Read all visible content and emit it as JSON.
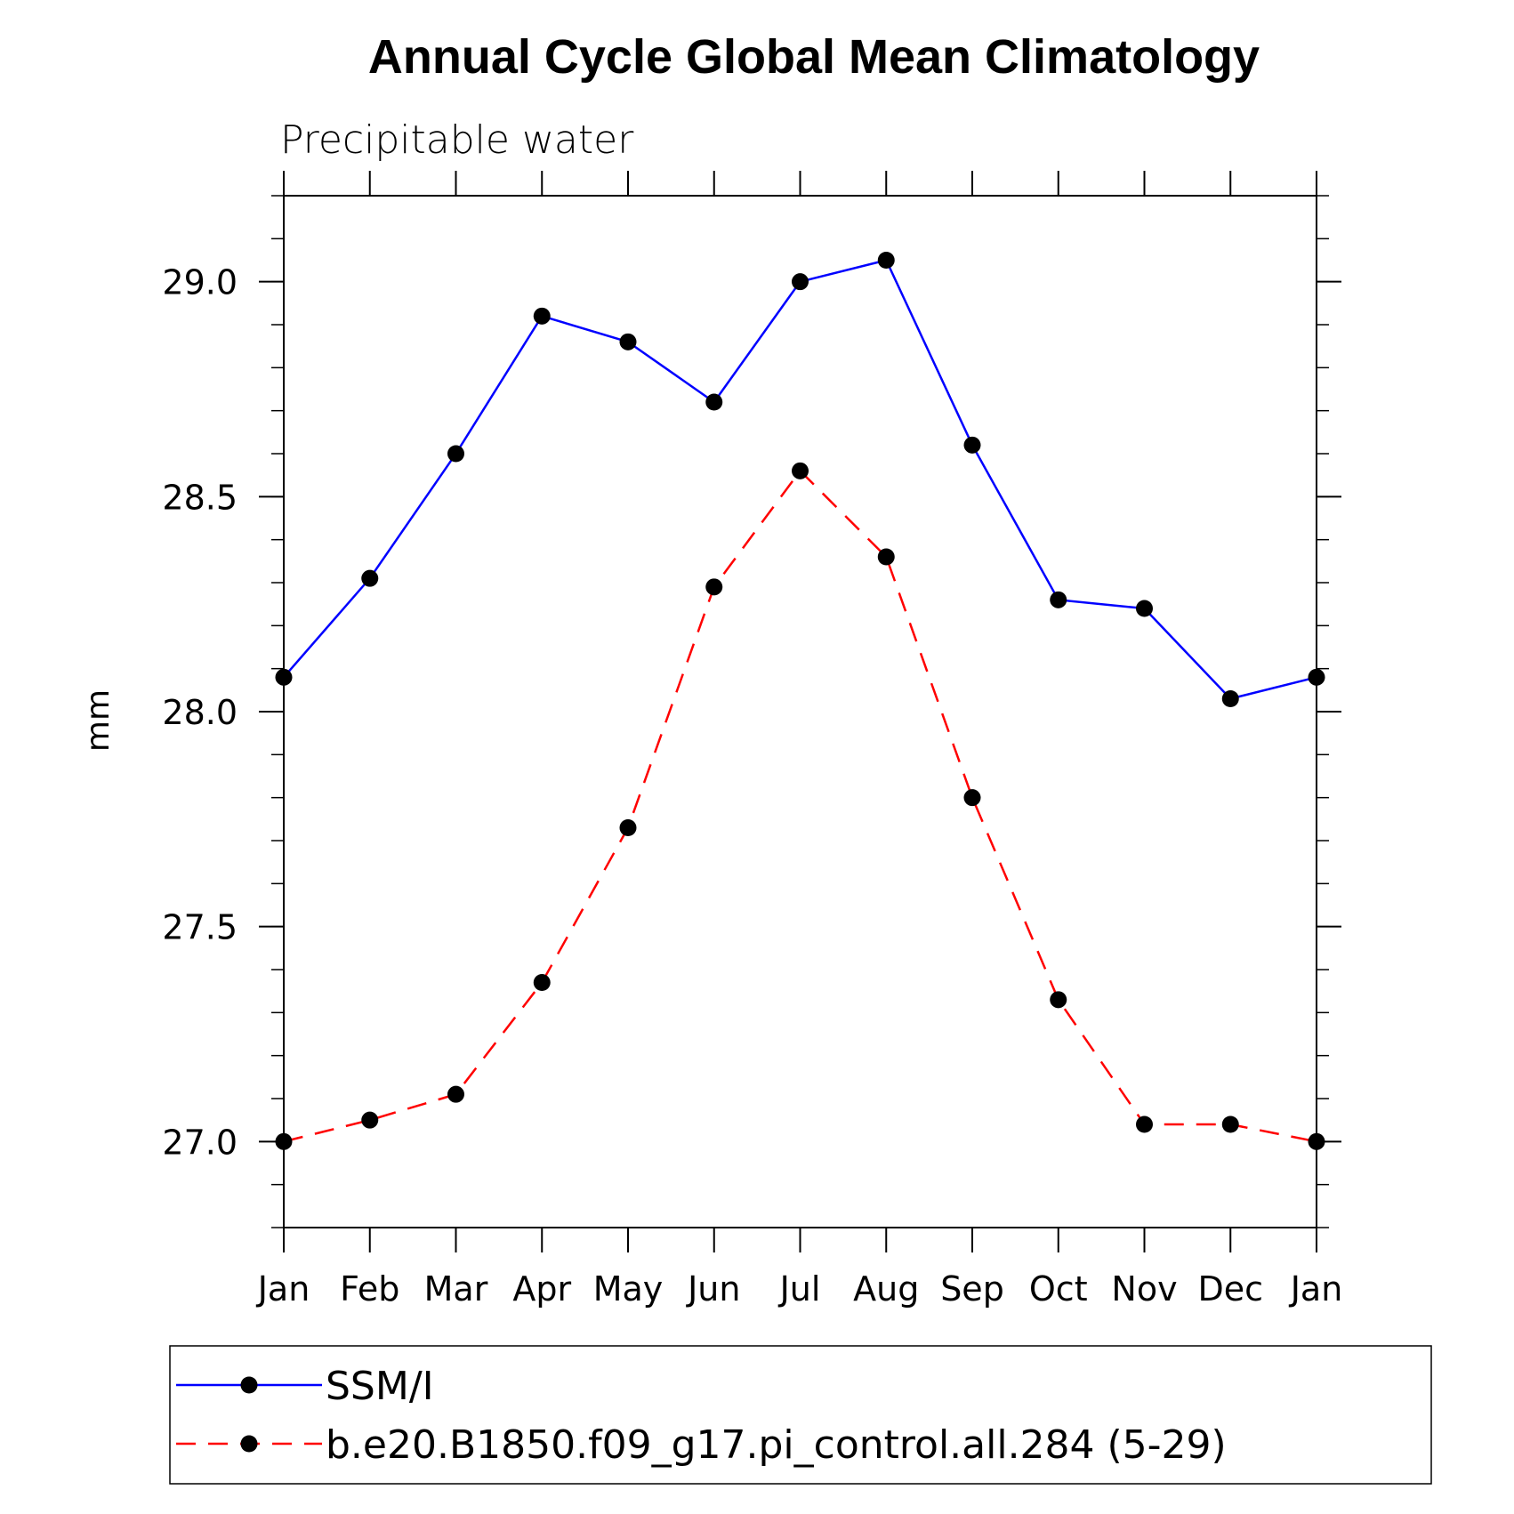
{
  "chart_data": {
    "type": "line",
    "title": "Annual Cycle Global Mean Climatology",
    "subtitle": "Precipitable water",
    "ylabel": "mm",
    "xlabel": "",
    "categories": [
      "Jan",
      "Feb",
      "Mar",
      "Apr",
      "May",
      "Jun",
      "Jul",
      "Aug",
      "Sep",
      "Oct",
      "Nov",
      "Dec",
      "Jan"
    ],
    "ylim": [
      26.8,
      29.2
    ],
    "yticks": [
      "27.0",
      "27.5",
      "28.0",
      "28.5",
      "29.0"
    ],
    "grid": false,
    "legend_position": "bottom",
    "series": [
      {
        "name": "SSM/I",
        "color": "#0000ff",
        "style": "solid",
        "marker": "filled-circle",
        "values": [
          28.08,
          28.31,
          28.6,
          28.92,
          28.86,
          28.72,
          29.0,
          29.05,
          28.62,
          28.26,
          28.24,
          28.03,
          28.08
        ]
      },
      {
        "name": "b.e20.B1850.f09_g17.pi_control.all.284 (5-29)",
        "color": "#ff0000",
        "style": "dashed",
        "marker": "filled-circle",
        "values": [
          27.0,
          27.05,
          27.11,
          27.37,
          27.73,
          28.29,
          28.56,
          28.36,
          27.8,
          27.33,
          27.04,
          27.04,
          27.0
        ]
      }
    ]
  }
}
